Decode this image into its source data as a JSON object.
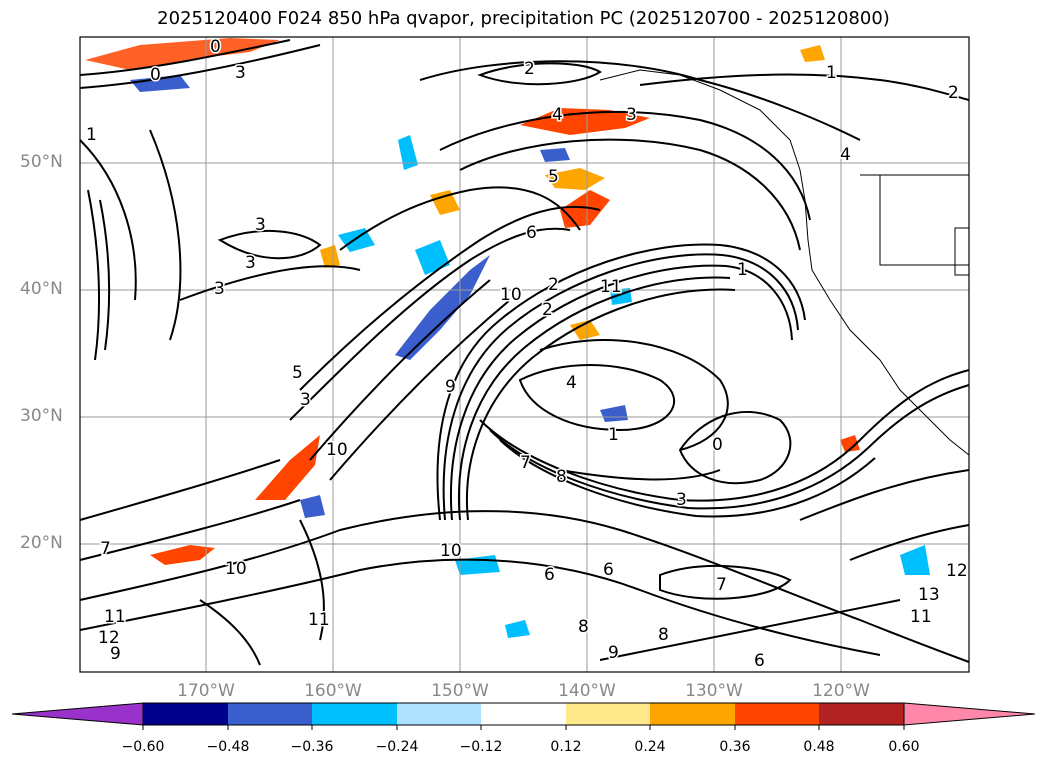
{
  "title": "2025120400 F024 850 hPa qvapor, precipitation PC (2025120700 - 2025120800)",
  "axes": {
    "lat_labels": [
      "50°N",
      "40°N",
      "30°N",
      "20°N"
    ],
    "lon_labels": [
      "170°W",
      "160°W",
      "150°W",
      "140°W",
      "130°W",
      "120°W"
    ]
  },
  "contour_labels": [
    "0",
    "0",
    "3",
    "2",
    "1",
    "2",
    "4",
    "3",
    "1",
    "4",
    "5",
    "6",
    "3",
    "3",
    "3",
    "1",
    "2",
    "2",
    "4",
    "1",
    "0",
    "3",
    "5",
    "3",
    "9",
    "10",
    "7",
    "8",
    "6",
    "10",
    "10",
    "7",
    "11",
    "12",
    "9",
    "8",
    "6",
    "7",
    "11",
    "9",
    "8",
    "6",
    "12",
    "11",
    "13",
    "10",
    "11"
  ],
  "colorbar": {
    "ticks": [
      "−0.60",
      "−0.48",
      "−0.36",
      "−0.24",
      "−0.12",
      "0.12",
      "0.24",
      "0.36",
      "0.48",
      "0.60"
    ],
    "colors": [
      "#9932cc",
      "#00008b",
      "#3a5fcd",
      "#00bfff",
      "#b0e2ff",
      "#ffffff",
      "#ffe98a",
      "#ffa500",
      "#ff4500",
      "#b22222",
      "#ff88aa",
      "#ff88aa"
    ],
    "under_color": "#9932cc",
    "over_color": "#ff88aa"
  },
  "colors": {
    "contour": "#000000",
    "grid": "#999999",
    "coast": "#000000"
  }
}
